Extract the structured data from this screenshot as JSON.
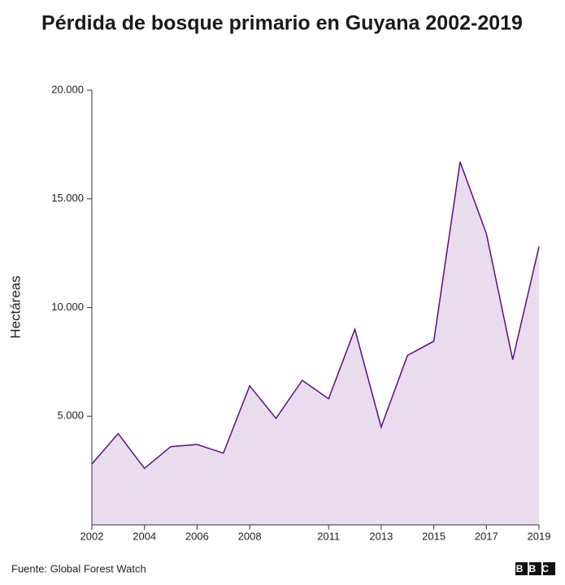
{
  "chart_data": {
    "type": "area",
    "title": "Pérdida de bosque primario en Guyana 2002-2019",
    "y_label": "Hectáreas",
    "source": "Fuente: Global Forest Watch",
    "logo": "BBC",
    "x": [
      2002,
      2003,
      2004,
      2005,
      2006,
      2007,
      2008,
      2009,
      2010,
      2011,
      2012,
      2013,
      2014,
      2015,
      2016,
      2017,
      2018,
      2019
    ],
    "values": [
      2800,
      4200,
      2600,
      3600,
      3700,
      3300,
      6400,
      4900,
      6650,
      5800,
      9000,
      4500,
      7800,
      8450,
      16700,
      13400,
      7600,
      12800
    ],
    "color": "#5c0f7c",
    "fill": "#e8dcee",
    "xlim": [
      2002,
      2019
    ],
    "xticks": [
      2002,
      2004,
      2006,
      2008,
      2011,
      2013,
      2015,
      2017,
      2019
    ],
    "ylim": [
      0,
      20000
    ],
    "yticks": [
      {
        "value": 5000,
        "label": "5.000"
      },
      {
        "value": 10000,
        "label": "10.000"
      },
      {
        "value": 15000,
        "label": "15.000"
      },
      {
        "value": 20000,
        "label": "20.000"
      }
    ],
    "grid": false
  }
}
